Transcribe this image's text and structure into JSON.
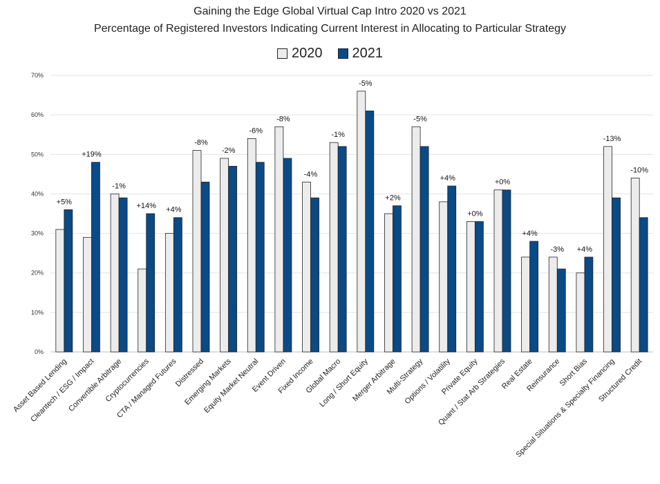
{
  "chart_data": {
    "type": "bar",
    "title": "Gaining the Edge Global Virtual Cap Intro 2020 vs 2021",
    "subtitle": "Percentage of Registered Investors Indicating Current Interest in Allocating to Particular Strategy",
    "xlabel": "",
    "ylabel": "",
    "ylim": [
      0,
      70
    ],
    "y_ticks": [
      "0%",
      "10%",
      "20%",
      "30%",
      "40%",
      "50%",
      "60%",
      "70%"
    ],
    "grid": true,
    "legend_position": "top-center",
    "categories": [
      "Asset Based Lending",
      "Cleantech / ESG / Impact",
      "Convertible Arbitrage",
      "Cryptocurrencies",
      "CTA / Managed Futures",
      "Distressed",
      "Emerging Markets",
      "Equity Market Neutral",
      "Event Driven",
      "Fixed Income",
      "Global Macro",
      "Long / Short Equity",
      "Merger Arbitrage",
      "Multi-Strategy",
      "Options / Volatility",
      "Private Equity",
      "Quant / Stat Arb Strategies",
      "Real Estate",
      "Reinsurance",
      "Short Bias",
      "Special Situations & Specialty Financing",
      "Structured Credit"
    ],
    "series": [
      {
        "name": "2020",
        "color": "#ececec",
        "values": [
          31,
          29,
          40,
          21,
          30,
          51,
          49,
          54,
          57,
          43,
          53,
          66,
          35,
          57,
          38,
          33,
          41,
          24,
          24,
          20,
          52,
          44
        ]
      },
      {
        "name": "2021",
        "color": "#0a4a86",
        "values": [
          36,
          48,
          39,
          35,
          34,
          43,
          47,
          48,
          49,
          39,
          52,
          61,
          37,
          52,
          42,
          33,
          41,
          28,
          21,
          24,
          39,
          34
        ]
      }
    ],
    "annotations": [
      "+5%",
      "+19%",
      "-1%",
      "+14%",
      "+4%",
      "-8%",
      "-2%",
      "-6%",
      "-8%",
      "-4%",
      "-1%",
      "-5%",
      "+2%",
      "-5%",
      "+4%",
      "+0%",
      "+0%",
      "+4%",
      "-3%",
      "+4%",
      "-13%",
      "-10%"
    ]
  }
}
